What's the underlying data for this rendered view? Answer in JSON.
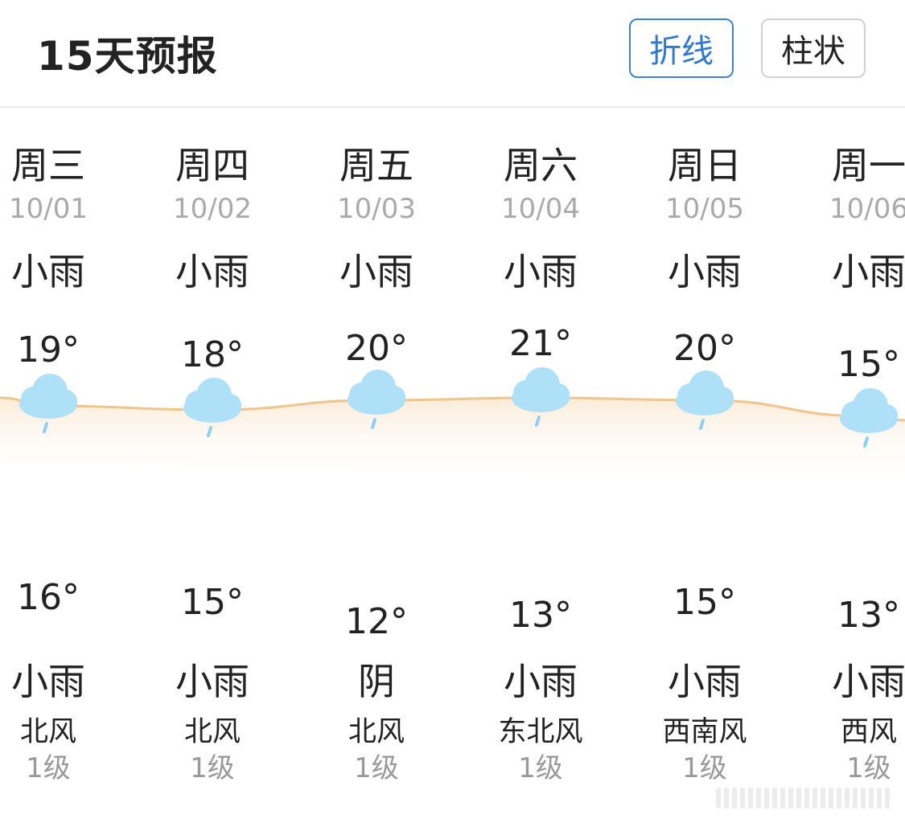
{
  "header": {
    "title": "15天预报",
    "mode_line_label": "折线",
    "mode_bar_label": "柱状"
  },
  "colors": {
    "accent": "#3e82d6",
    "high_line": "#f0c48d",
    "low_line": "#8ab5ea",
    "cloud": "#aee0f7",
    "rain": "#8fd0f0"
  },
  "days": [
    {
      "weekday": "周三",
      "date": "10/01",
      "weather_day": "小雨",
      "high": "19°",
      "low": "16°",
      "weather_night": "小雨",
      "wind": "北风",
      "level": "1级",
      "icon_day": "light-rain-icon",
      "icon_night": "light-rain-icon"
    },
    {
      "weekday": "周四",
      "date": "10/02",
      "weather_day": "小雨",
      "high": "18°",
      "low": "15°",
      "weather_night": "小雨",
      "wind": "北风",
      "level": "1级",
      "icon_day": "light-rain-icon",
      "icon_night": "light-rain-icon"
    },
    {
      "weekday": "周五",
      "date": "10/03",
      "weather_day": "小雨",
      "high": "20°",
      "low": "12°",
      "weather_night": "阴",
      "wind": "北风",
      "level": "1级",
      "icon_day": "light-rain-icon",
      "icon_night": "cloudy-icon"
    },
    {
      "weekday": "周六",
      "date": "10/04",
      "weather_day": "小雨",
      "high": "21°",
      "low": "13°",
      "weather_night": "小雨",
      "wind": "东北风",
      "level": "1级",
      "icon_day": "light-rain-icon",
      "icon_night": "light-rain-icon"
    },
    {
      "weekday": "周日",
      "date": "10/05",
      "weather_day": "小雨",
      "high": "20°",
      "low": "15°",
      "weather_night": "小雨",
      "wind": "西南风",
      "level": "1级",
      "icon_day": "light-rain-icon",
      "icon_night": "light-rain-icon"
    },
    {
      "weekday": "周一",
      "date": "10/06",
      "weather_day": "小雨",
      "high": "15°",
      "low": "13°",
      "weather_night": "小雨",
      "wind": "西风",
      "level": "1级",
      "icon_day": "light-rain-icon",
      "icon_night": "light-rain-icon"
    }
  ]
}
